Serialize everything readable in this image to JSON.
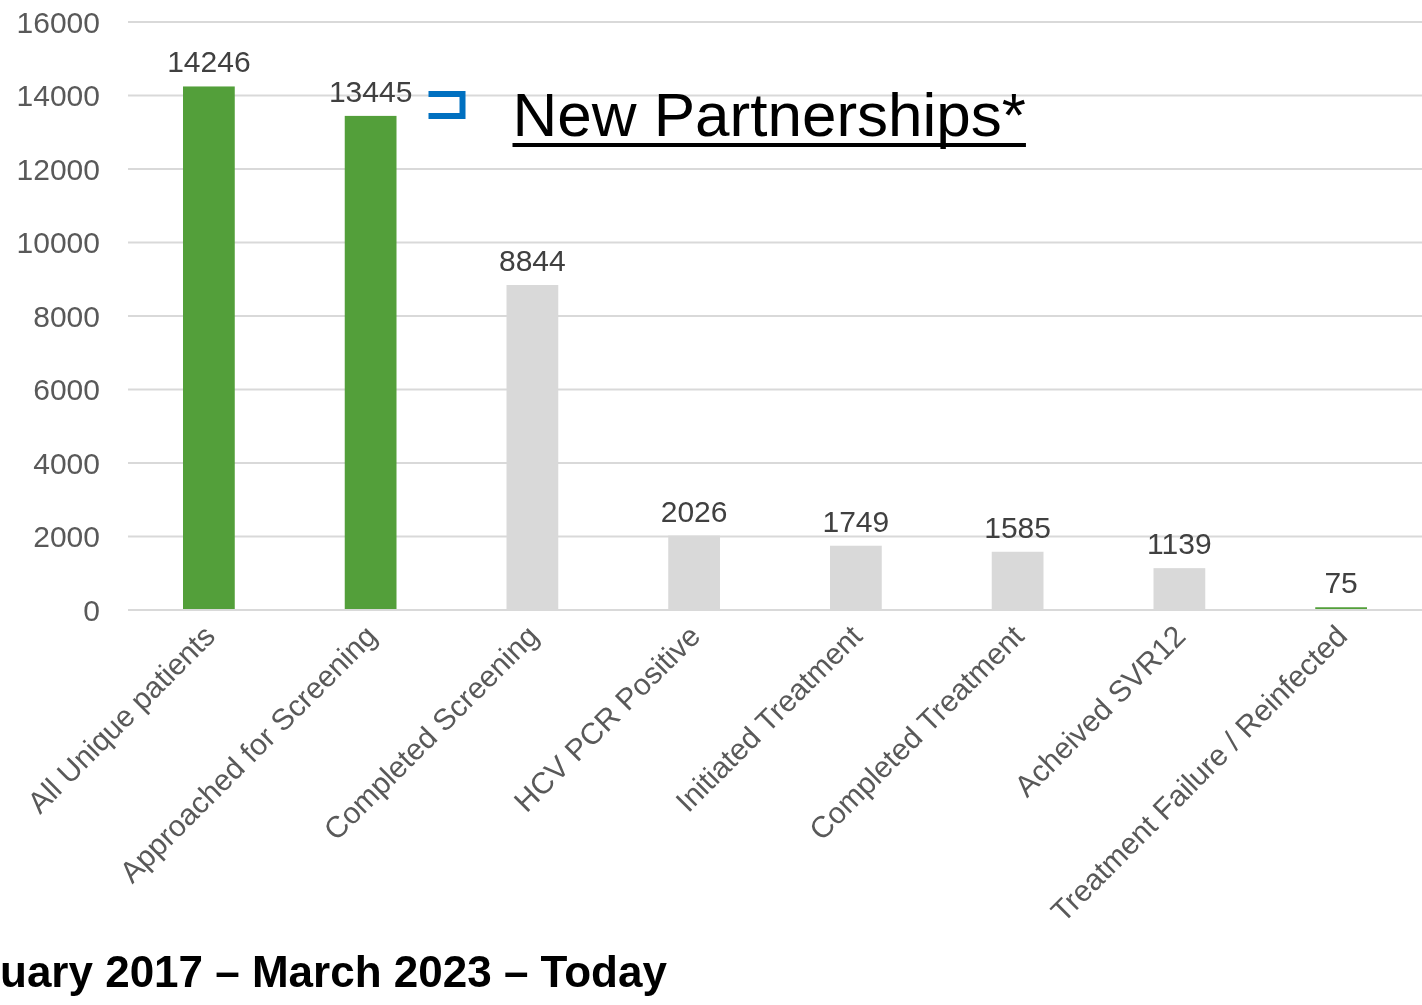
{
  "chart_data": {
    "type": "bar",
    "categories": [
      "All Unique patients",
      "Approached for Screening",
      "Completed Screening",
      "HCV PCR Positive",
      "Initiated Treatment",
      "Completed Treatment",
      "Acheived SVR12",
      "Treatment Failure / Reinfected"
    ],
    "values": [
      14246,
      13445,
      8844,
      2026,
      1749,
      1585,
      1139,
      75
    ],
    "colors": [
      "#539f3a",
      "#539f3a",
      "#d9d9d9",
      "#d9d9d9",
      "#d9d9d9",
      "#d9d9d9",
      "#d9d9d9",
      "#539f3a"
    ],
    "data_labels": true,
    "ylim": [
      0,
      16000
    ],
    "yticks": [
      0,
      2000,
      4000,
      6000,
      8000,
      10000,
      12000,
      14000,
      16000
    ],
    "grid": "y",
    "annotations": [
      {
        "text": "New Partnerships*",
        "x": "Approached for Screening",
        "y": 13445
      },
      "uary 2017 – March 2023 – Today"
    ]
  }
}
